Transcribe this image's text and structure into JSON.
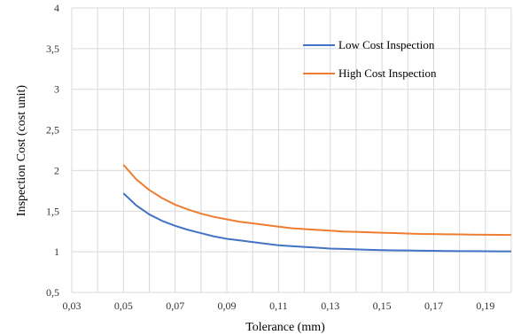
{
  "chart_data": {
    "type": "line",
    "xlabel": "Tolerance (mm)",
    "ylabel": "Inspection Cost (cost unit)",
    "xlim": [
      0.03,
      0.2
    ],
    "ylim": [
      0.5,
      4
    ],
    "xticks": [
      0.03,
      0.05,
      0.07,
      0.09,
      0.11,
      0.13,
      0.15,
      0.17,
      0.19
    ],
    "xtick_labels": [
      "0,03",
      "0,05",
      "0,07",
      "0,09",
      "0,11",
      "0,13",
      "0,15",
      "0,17",
      "0,19"
    ],
    "yticks": [
      0.5,
      1,
      1.5,
      2,
      2.5,
      3,
      3.5,
      4
    ],
    "ytick_labels": [
      "0,5",
      "1",
      "1,5",
      "2",
      "2,5",
      "3",
      "3,5",
      "4"
    ],
    "grid": true,
    "legend_position": "top-right",
    "x": [
      0.05,
      0.055,
      0.06,
      0.065,
      0.07,
      0.075,
      0.08,
      0.085,
      0.09,
      0.095,
      0.1,
      0.105,
      0.11,
      0.115,
      0.12,
      0.125,
      0.13,
      0.135,
      0.14,
      0.145,
      0.15,
      0.155,
      0.16,
      0.165,
      0.17,
      0.175,
      0.18,
      0.185,
      0.19,
      0.195,
      0.2
    ],
    "series": [
      {
        "name": "Low Cost Inspection",
        "color": "#4472c4",
        "values": [
          1.72,
          1.57,
          1.46,
          1.38,
          1.32,
          1.27,
          1.23,
          1.19,
          1.16,
          1.14,
          1.12,
          1.1,
          1.08,
          1.07,
          1.06,
          1.05,
          1.04,
          1.035,
          1.03,
          1.025,
          1.02,
          1.018,
          1.016,
          1.014,
          1.012,
          1.01,
          1.009,
          1.008,
          1.007,
          1.006,
          1.005
        ]
      },
      {
        "name": "High Cost Inspection",
        "color": "#ed7d31",
        "values": [
          2.07,
          1.89,
          1.76,
          1.66,
          1.58,
          1.52,
          1.47,
          1.43,
          1.4,
          1.37,
          1.35,
          1.33,
          1.31,
          1.29,
          1.28,
          1.27,
          1.26,
          1.25,
          1.245,
          1.24,
          1.235,
          1.23,
          1.225,
          1.22,
          1.218,
          1.216,
          1.214,
          1.212,
          1.21,
          1.209,
          1.208
        ]
      }
    ]
  }
}
